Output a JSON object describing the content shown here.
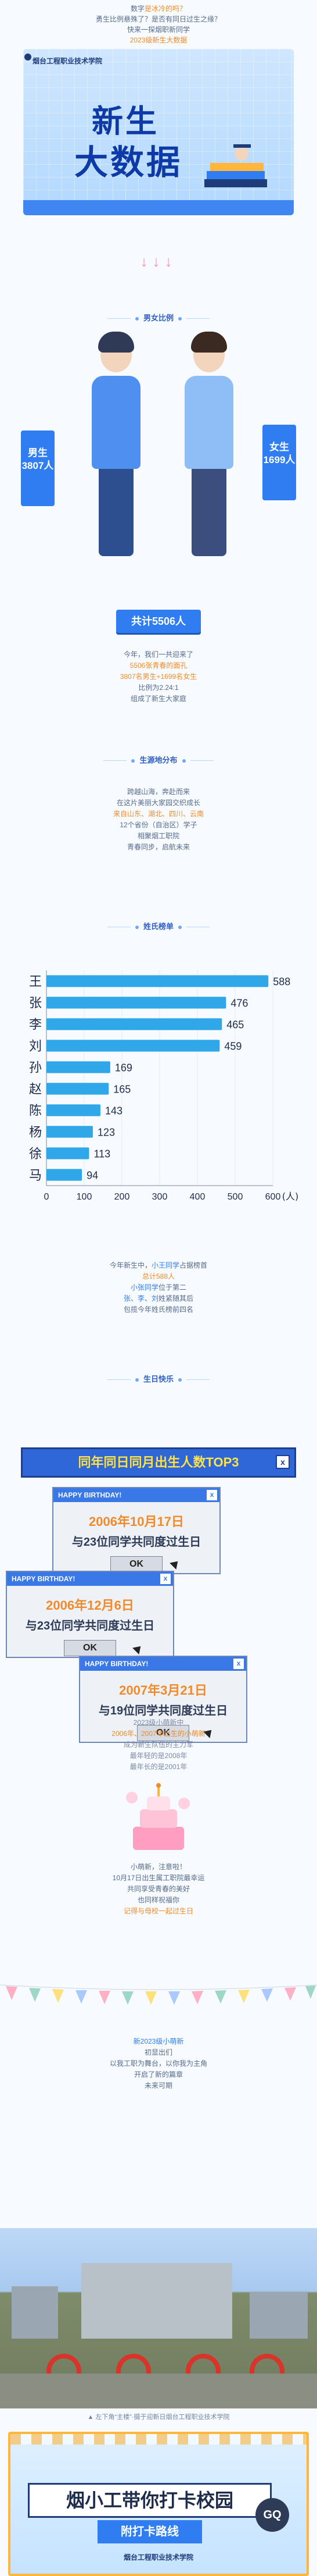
{
  "intro": {
    "line1_a": "数字",
    "line1_hl": "是冰冷的吗？",
    "line2": "勇生比例悬殊了？是否有同日过生之缘？",
    "line3": "快来一探烟职新同学",
    "line4": "2023级新生大数据"
  },
  "banner": {
    "school_name": "烟台工程职业技术学院",
    "title_line1": "新生",
    "title_line2": "大数据"
  },
  "arrows": "↓↓↓",
  "gender": {
    "section_title": "男女比例",
    "male_label": "男生",
    "male_count": "3807人",
    "female_label": "女生",
    "female_count": "1699人",
    "total": "共计5506人"
  },
  "gender_text": {
    "l1": "今年，我们一共迎来了",
    "l2": "5506张青春的面孔",
    "l3": "3807名男生+1699名女生",
    "l4": "比例为2.24:1",
    "l5": "组成了新生大家庭"
  },
  "origin": {
    "section_title": "生源地分布",
    "l1": "跨越山海，奔赴而来",
    "l2": "在这片美丽大家园交织成长",
    "l3": "来自山东、湖北、四川、云南",
    "l4": "12个省份（自治区）学子",
    "l5": "相聚烟工职院",
    "l6": "青春同步，启航未来"
  },
  "surname": {
    "section_title": "姓氏榜单",
    "unit": "(人)"
  },
  "chart_data": {
    "type": "bar",
    "orientation": "horizontal",
    "categories": [
      "王",
      "张",
      "李",
      "刘",
      "孙",
      "赵",
      "陈",
      "杨",
      "徐",
      "马"
    ],
    "values": [
      588,
      476,
      465,
      459,
      169,
      165,
      143,
      123,
      113,
      94
    ],
    "xlim": [
      0,
      600
    ],
    "xticks": [
      0,
      100,
      200,
      300,
      400,
      500,
      600
    ],
    "xlabel": "(人)"
  },
  "surname_text": {
    "l1": "今年新生中，",
    "l1_hl": "小王同学",
    "l1_b": "占据榜首",
    "l2": "总计588人",
    "l3_hl": "小张同学",
    "l3": "位于第二",
    "l4": "张、李、刘",
    "l4_b": "姓紧随其后",
    "l5": "包揽今年姓氏榜前四名"
  },
  "birthday": {
    "section_title": "生日快乐",
    "header": "同年同日同月出生人数TOP3",
    "close": "x",
    "windows": [
      {
        "bar": "HAPPY BIRTHDAY!",
        "date": "2006年10月17日",
        "msg": "与23位同学共同度过生日",
        "ok": "OK"
      },
      {
        "bar": "HAPPY BIRTHDAY!",
        "date": "2006年12月6日",
        "msg": "与23位同学共同度过生日",
        "ok": "OK"
      },
      {
        "bar": "HAPPY BIRTHDAY!",
        "date": "2007年3月21日",
        "msg": "与19位同学共同度过生日",
        "ok": "OK"
      }
    ]
  },
  "birthday_text": {
    "l1": "2023级小萌新中",
    "l2": "2006年、2007年出生的小萌新",
    "l3": "成为新生队伍的主力军",
    "l4": "最年轻的是2008年",
    "l5": "最年长的是2001年"
  },
  "cake_text": {
    "l1": "小萌新，注意啦！",
    "l2": "10月17日出生属工职院最幸运",
    "l3": "共同享受青春的美好",
    "l4": "也同样祝福你",
    "l5": "记得与母校一起过生日"
  },
  "closing_text": {
    "l1": "新2023级小萌新",
    "l2": "初显出们",
    "l3": "以我工职为舞台，以你我为主角",
    "l4": "开启了新的篇章",
    "l5": "未来可期"
  },
  "photo_caption": "▲ 左下角“主楼”·摄于迎新日烟台工程职业技术学院",
  "footer": {
    "main_title": "烟小工带你打卡校园",
    "sub_title": "附打卡路线",
    "badge": "GQ",
    "school": "烟台工程职业技术学院"
  },
  "colors": {
    "accent": "#2f7df0",
    "bar_fill": "#2fa7e8",
    "highlight": "#f08a2a"
  }
}
